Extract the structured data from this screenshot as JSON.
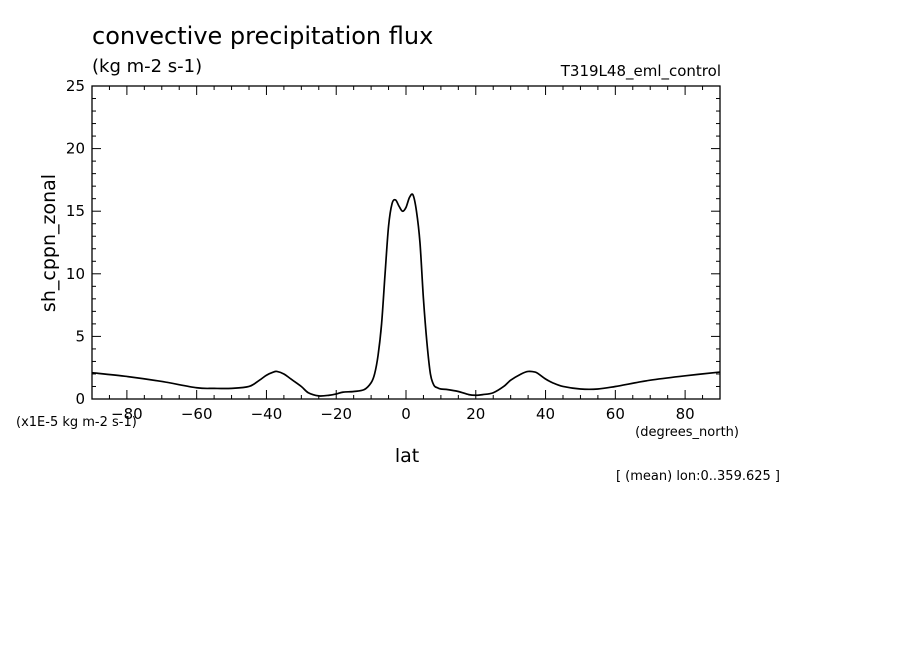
{
  "chart_data": {
    "type": "line",
    "title": "convective precipitation flux",
    "units": "(kg m-2 s-1)",
    "run_label": "T319L48_eml_control",
    "ylabel": "sh_cppn_zonal",
    "xlabel": "lat",
    "x_units": "(degrees_north)",
    "scale_note": "(x1E-5 kg m-2 s-1)",
    "mean_note": "[ (mean) lon:0..359.625 ]",
    "xlim": [
      -90,
      90
    ],
    "ylim": [
      0,
      25
    ],
    "x_ticks": [
      "-80",
      "-60",
      "-40",
      "-20",
      "0",
      "20",
      "40",
      "60",
      "80"
    ],
    "y_ticks": [
      "0",
      "5",
      "10",
      "15",
      "20",
      "25"
    ],
    "grid": false,
    "series": [
      {
        "x": [
          -90,
          -80,
          -70,
          -60,
          -55,
          -50,
          -45,
          -42,
          -40,
          -38,
          -37,
          -35,
          -33,
          -30,
          -28,
          -25,
          -22,
          -20,
          -18,
          -15,
          -12,
          -10,
          -9,
          -8,
          -7,
          -6,
          -5,
          -4,
          -3,
          -2,
          -1,
          0,
          1,
          2,
          3,
          4,
          5,
          6,
          7,
          8,
          9,
          10,
          12,
          15,
          18,
          20,
          22,
          25,
          28,
          30,
          33,
          35,
          37,
          38,
          40,
          42,
          45,
          50,
          55,
          60,
          70,
          80,
          90
        ],
        "y": [
          2.1,
          1.8,
          1.4,
          0.9,
          0.85,
          0.85,
          1.0,
          1.5,
          1.9,
          2.15,
          2.2,
          2.0,
          1.6,
          1.0,
          0.5,
          0.25,
          0.3,
          0.4,
          0.55,
          0.6,
          0.75,
          1.3,
          2.0,
          3.5,
          6.0,
          10.0,
          13.8,
          15.6,
          15.9,
          15.4,
          15.0,
          15.3,
          16.1,
          16.3,
          15.0,
          12.5,
          8.0,
          4.5,
          2.0,
          1.1,
          0.9,
          0.8,
          0.75,
          0.6,
          0.35,
          0.3,
          0.35,
          0.5,
          1.0,
          1.5,
          2.0,
          2.2,
          2.15,
          2.0,
          1.6,
          1.3,
          1.0,
          0.8,
          0.8,
          1.0,
          1.5,
          1.85,
          2.15
        ]
      }
    ]
  }
}
